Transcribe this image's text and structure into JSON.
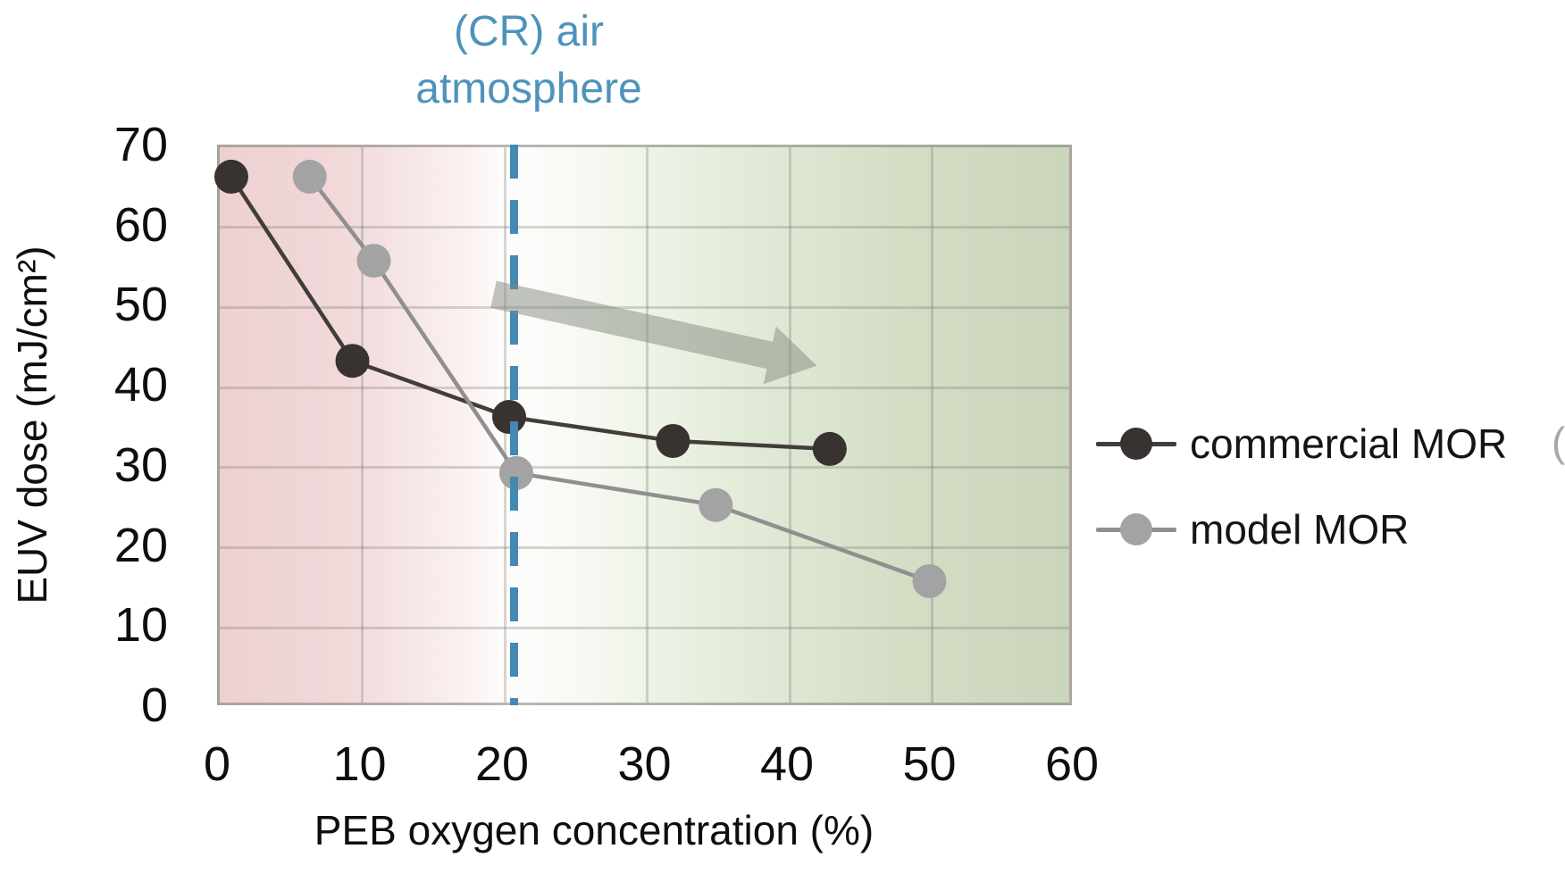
{
  "chart_data": {
    "type": "line",
    "title": "",
    "xlabel": "PEB oxygen concentration (%)",
    "ylabel": "EUV dose (mJ/cm²)",
    "xlim": [
      0,
      60
    ],
    "ylim": [
      0,
      70
    ],
    "xticks": [
      0,
      10,
      20,
      30,
      40,
      50,
      60
    ],
    "yticks": [
      0,
      10,
      20,
      30,
      40,
      50,
      60,
      70
    ],
    "grid": true,
    "legend_position": "right-outside",
    "series": [
      {
        "name": "commercial MOR",
        "marker": "circle",
        "color": "#383231",
        "line_color": "#433d3a",
        "points": [
          [
            1,
            66
          ],
          [
            9.5,
            43
          ],
          [
            20.5,
            36
          ],
          [
            32,
            33
          ],
          [
            43,
            32
          ]
        ]
      },
      {
        "name": "model MOR",
        "marker": "circle",
        "color": "#a3a3a3",
        "line_color": "#8f8f8f",
        "points": [
          [
            6.5,
            66
          ],
          [
            11,
            55.5
          ],
          [
            21,
            29
          ],
          [
            35,
            25
          ],
          [
            50,
            15.5
          ]
        ]
      }
    ],
    "vline": {
      "x": 21,
      "style": "dashed",
      "color": "#4489b1",
      "label_line1": "(CR) air",
      "label_line2": "atmosphere",
      "label_color": "#4e93bb"
    },
    "arrow": {
      "from": [
        19.4,
        51.3
      ],
      "to": [
        42.1,
        42.4
      ],
      "color": "#848a80",
      "opacity": 0.5
    },
    "background_gradient": {
      "left_color": "#edd0d2",
      "middle_color": "#ffffff",
      "right_color": "#cad5bc"
    }
  },
  "legend": {
    "items": [
      {
        "label": "commercial MOR"
      },
      {
        "label": "model MOR"
      }
    ],
    "clipped_glyph": "("
  }
}
